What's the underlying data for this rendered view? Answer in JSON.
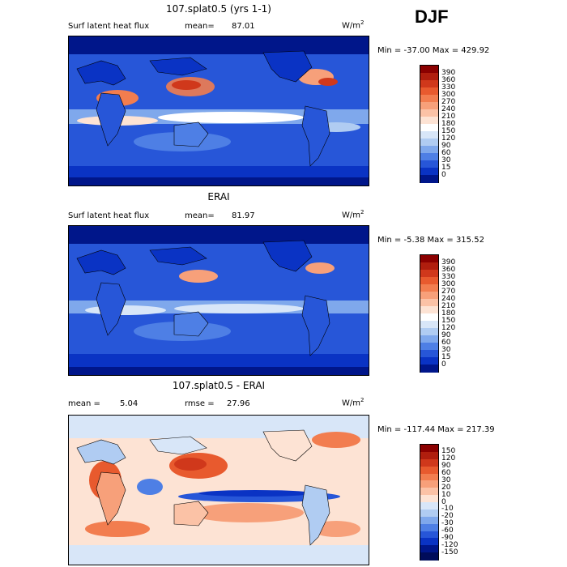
{
  "season": "DJF",
  "panels": [
    {
      "title": "107.splat0.5 (yrs 1-1)",
      "left_label": "Surf latent heat flux",
      "stat_label": "mean=",
      "stat_value": "87.01",
      "units": "W/m",
      "units_exp": "2",
      "range_text": "Min = -37.00 Max = 429.92",
      "colorbar": {
        "labels": [
          "390",
          "360",
          "330",
          "300",
          "270",
          "240",
          "210",
          "180",
          "150",
          "120",
          "90",
          "60",
          "30",
          "15",
          "0"
        ],
        "colors": [
          "#8b0000",
          "#b01e0e",
          "#d0381b",
          "#e85a2e",
          "#f27d4f",
          "#f7a07a",
          "#fbc2a6",
          "#fde3d4",
          "#ffffff",
          "#d8e6f8",
          "#b0ccf2",
          "#7fa8ec",
          "#4e7fe5",
          "#2756d8",
          "#0a33c4",
          "#00168a"
        ]
      },
      "palette_key": "abs"
    },
    {
      "title": "ERAI",
      "left_label": "Surf latent heat flux",
      "stat_label": "mean=",
      "stat_value": "81.97",
      "units": "W/m",
      "units_exp": "2",
      "range_text": "Min =  -5.38 Max = 315.52",
      "colorbar": {
        "labels": [
          "390",
          "360",
          "330",
          "300",
          "270",
          "240",
          "210",
          "180",
          "150",
          "120",
          "90",
          "60",
          "30",
          "15",
          "0"
        ],
        "colors": [
          "#8b0000",
          "#b01e0e",
          "#d0381b",
          "#e85a2e",
          "#f27d4f",
          "#f7a07a",
          "#fbc2a6",
          "#fde3d4",
          "#ffffff",
          "#d8e6f8",
          "#b0ccf2",
          "#7fa8ec",
          "#4e7fe5",
          "#2756d8",
          "#0a33c4",
          "#00168a"
        ]
      },
      "palette_key": "abs"
    },
    {
      "title": "107.splat0.5 - ERAI",
      "left_label": "mean =",
      "stat_label": "rmse =",
      "left_value": "5.04",
      "stat_value": "27.96",
      "units": "W/m",
      "units_exp": "2",
      "range_text": "Min = -117.44 Max = 217.39",
      "colorbar": {
        "labels": [
          "150",
          "120",
          "90",
          "60",
          "30",
          "20",
          "10",
          "0",
          "-10",
          "-20",
          "-30",
          "-60",
          "-90",
          "-120",
          "-150"
        ],
        "colors": [
          "#8b0000",
          "#b01e0e",
          "#d0381b",
          "#e85a2e",
          "#f27d4f",
          "#f7a07a",
          "#fbc2a6",
          "#fde3d4",
          "#d8e6f8",
          "#b0ccf2",
          "#7fa8ec",
          "#4e7fe5",
          "#2756d8",
          "#0a33c4",
          "#00168a",
          "#000c5a"
        ]
      },
      "palette_key": "diff"
    }
  ]
}
